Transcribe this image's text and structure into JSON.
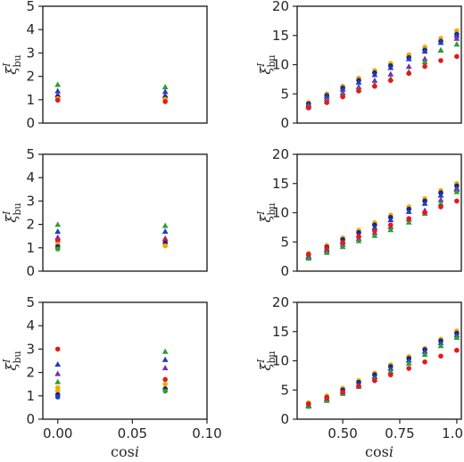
{
  "colors": {
    "red": "#e41a1c",
    "orange": "#f2a900",
    "green": "#2ca02c",
    "blue": "#1f3fbf",
    "purple": "#7a2fb0",
    "navy": "#1a237e"
  },
  "chart_data": [
    {
      "type": "scatter",
      "name": "top-left",
      "xlim": [
        -0.01,
        0.1
      ],
      "ylim": [
        0,
        5
      ],
      "xticks": [],
      "yticks": [
        0,
        1,
        2,
        3,
        4,
        5
      ],
      "ylabel_main": "ξ",
      "ylabel_sup": "I",
      "ylabel_sub": "bu",
      "xlabel": "",
      "points": [
        {
          "x": 0,
          "y": 1.65,
          "c": "green",
          "m": "tri"
        },
        {
          "x": 0,
          "y": 1.38,
          "c": "blue",
          "m": "tri"
        },
        {
          "x": 0,
          "y": 1.22,
          "c": "purple",
          "m": "tri"
        },
        {
          "x": 0,
          "y": 1.12,
          "c": "navy",
          "m": "circle"
        },
        {
          "x": 0,
          "y": 1.05,
          "c": "orange",
          "m": "circle"
        },
        {
          "x": 0,
          "y": 0.98,
          "c": "red",
          "m": "circle"
        },
        {
          "x": 0.072,
          "y": 1.55,
          "c": "green",
          "m": "tri"
        },
        {
          "x": 0.072,
          "y": 1.35,
          "c": "blue",
          "m": "tri"
        },
        {
          "x": 0.072,
          "y": 1.18,
          "c": "purple",
          "m": "tri"
        },
        {
          "x": 0.072,
          "y": 1.1,
          "c": "navy",
          "m": "circle"
        },
        {
          "x": 0.072,
          "y": 1.02,
          "c": "orange",
          "m": "circle"
        },
        {
          "x": 0.072,
          "y": 0.92,
          "c": "red",
          "m": "circle"
        }
      ]
    },
    {
      "type": "scatter",
      "name": "top-right",
      "xlim": [
        0.3,
        1.02
      ],
      "ylim": [
        0,
        20
      ],
      "xticks": [],
      "yticks": [
        0,
        5,
        10,
        15,
        20
      ],
      "ylabel_main": "ξ",
      "ylabel_sup": "I",
      "ylabel_sub": "bu",
      "xlabel": "",
      "x": [
        0.35,
        0.43,
        0.5,
        0.57,
        0.64,
        0.71,
        0.79,
        0.86,
        0.93,
        1.0
      ],
      "series": [
        {
          "c": "orange",
          "m": "circle",
          "values": [
            3.5,
            5.0,
            6.3,
            7.7,
            9.0,
            10.2,
            11.7,
            13.0,
            14.5,
            15.8
          ]
        },
        {
          "c": "navy",
          "m": "circle",
          "values": [
            3.3,
            4.7,
            6.0,
            7.3,
            8.6,
            9.8,
            11.2,
            12.5,
            14.0,
            15.2
          ]
        },
        {
          "c": "blue",
          "m": "tri",
          "values": [
            3.2,
            4.6,
            5.8,
            7.0,
            8.3,
            9.5,
            11.0,
            12.3,
            13.8,
            15.0
          ]
        },
        {
          "c": "purple",
          "m": "tri",
          "values": [
            3.0,
            4.2,
            5.2,
            6.2,
            7.3,
            8.4,
            9.7,
            11.0,
            12.5,
            14.5
          ]
        },
        {
          "c": "green",
          "m": "tri",
          "values": [
            2.8,
            3.8,
            4.8,
            5.8,
            6.6,
            7.6,
            8.8,
            10.5,
            12.5,
            13.5
          ]
        },
        {
          "c": "red",
          "m": "circle",
          "values": [
            2.6,
            3.5,
            4.5,
            5.5,
            6.3,
            7.3,
            8.5,
            9.7,
            10.7,
            11.4
          ]
        }
      ]
    },
    {
      "type": "scatter",
      "name": "middle-left",
      "xlim": [
        -0.01,
        0.1
      ],
      "ylim": [
        0,
        5
      ],
      "xticks": [],
      "yticks": [
        0,
        1,
        2,
        3,
        4,
        5
      ],
      "ylabel_main": "ξ",
      "ylabel_sup": "I",
      "ylabel_sub": "bu",
      "xlabel": "",
      "points": [
        {
          "x": 0,
          "y": 2.0,
          "c": "green",
          "m": "tri"
        },
        {
          "x": 0,
          "y": 1.7,
          "c": "blue",
          "m": "tri"
        },
        {
          "x": 0,
          "y": 1.45,
          "c": "purple",
          "m": "tri"
        },
        {
          "x": 0,
          "y": 1.3,
          "c": "red",
          "m": "circle"
        },
        {
          "x": 0,
          "y": 1.15,
          "c": "orange",
          "m": "circle"
        },
        {
          "x": 0,
          "y": 1.05,
          "c": "navy",
          "m": "circle"
        },
        {
          "x": 0,
          "y": 0.95,
          "c": "green",
          "m": "circle"
        },
        {
          "x": 0.072,
          "y": 1.95,
          "c": "green",
          "m": "tri"
        },
        {
          "x": 0.072,
          "y": 1.7,
          "c": "blue",
          "m": "tri"
        },
        {
          "x": 0.072,
          "y": 1.4,
          "c": "purple",
          "m": "tri"
        },
        {
          "x": 0.072,
          "y": 1.3,
          "c": "red",
          "m": "circle"
        },
        {
          "x": 0.072,
          "y": 1.2,
          "c": "navy",
          "m": "circle"
        },
        {
          "x": 0.072,
          "y": 1.08,
          "c": "orange",
          "m": "circle"
        }
      ]
    },
    {
      "type": "scatter",
      "name": "middle-right",
      "xlim": [
        0.3,
        1.02
      ],
      "ylim": [
        0,
        20
      ],
      "xticks": [],
      "yticks": [
        0,
        5,
        10,
        15,
        20
      ],
      "ylabel_main": "ξ",
      "ylabel_sup": "I",
      "ylabel_sub": "bu",
      "xlabel": "",
      "x": [
        0.35,
        0.43,
        0.5,
        0.57,
        0.64,
        0.71,
        0.79,
        0.86,
        0.93,
        1.0
      ],
      "series": [
        {
          "c": "orange",
          "m": "circle",
          "values": [
            3.0,
            4.4,
            5.7,
            7.0,
            8.3,
            9.6,
            11.0,
            12.4,
            13.8,
            15.0
          ]
        },
        {
          "c": "navy",
          "m": "circle",
          "values": [
            2.8,
            4.1,
            5.4,
            6.6,
            7.9,
            9.2,
            10.6,
            12.0,
            13.4,
            14.6
          ]
        },
        {
          "c": "blue",
          "m": "tri",
          "values": [
            2.6,
            3.8,
            5.0,
            6.2,
            7.5,
            8.8,
            10.2,
            11.6,
            13.0,
            14.2
          ]
        },
        {
          "c": "purple",
          "m": "tri",
          "values": [
            2.4,
            3.5,
            4.6,
            5.6,
            6.6,
            7.6,
            8.9,
            10.4,
            12.2,
            14.0
          ]
        },
        {
          "c": "green",
          "m": "tri",
          "values": [
            2.2,
            3.2,
            4.2,
            5.2,
            6.1,
            7.1,
            8.4,
            9.9,
            11.6,
            13.6
          ]
        },
        {
          "c": "red",
          "m": "circle",
          "values": [
            2.9,
            3.9,
            4.9,
            5.9,
            6.9,
            7.9,
            9.0,
            10.0,
            11.0,
            12.0
          ]
        }
      ]
    },
    {
      "type": "scatter",
      "name": "bottom-left",
      "xlim": [
        -0.01,
        0.1
      ],
      "ylim": [
        0,
        5
      ],
      "xticks": [
        0.0,
        0.05,
        0.1
      ],
      "xtick_labels": [
        "0.00",
        "0.05",
        "0.10"
      ],
      "yticks": [
        0,
        1,
        2,
        3,
        4,
        5
      ],
      "ylabel_main": "ξ",
      "ylabel_sup": "I",
      "ylabel_sub": "bu",
      "xlabel": "cos",
      "xlabel_var": "i",
      "points": [
        {
          "x": 0,
          "y": 3.0,
          "c": "red",
          "m": "circle"
        },
        {
          "x": 0,
          "y": 2.35,
          "c": "blue",
          "m": "tri"
        },
        {
          "x": 0,
          "y": 1.95,
          "c": "purple",
          "m": "tri"
        },
        {
          "x": 0,
          "y": 1.6,
          "c": "green",
          "m": "tri"
        },
        {
          "x": 0,
          "y": 1.35,
          "c": "orange",
          "m": "circle"
        },
        {
          "x": 0,
          "y": 1.2,
          "c": "orange",
          "m": "circle"
        },
        {
          "x": 0,
          "y": 1.05,
          "c": "navy",
          "m": "circle"
        },
        {
          "x": 0,
          "y": 0.95,
          "c": "blue",
          "m": "circle"
        },
        {
          "x": 0.072,
          "y": 2.9,
          "c": "green",
          "m": "tri"
        },
        {
          "x": 0.072,
          "y": 2.55,
          "c": "blue",
          "m": "tri"
        },
        {
          "x": 0.072,
          "y": 2.2,
          "c": "purple",
          "m": "tri"
        },
        {
          "x": 0.072,
          "y": 1.7,
          "c": "red",
          "m": "circle"
        },
        {
          "x": 0.072,
          "y": 1.5,
          "c": "orange",
          "m": "circle"
        },
        {
          "x": 0.072,
          "y": 1.3,
          "c": "navy",
          "m": "circle"
        },
        {
          "x": 0.072,
          "y": 1.2,
          "c": "green",
          "m": "circle"
        }
      ]
    },
    {
      "type": "scatter",
      "name": "bottom-right",
      "xlim": [
        0.3,
        1.02
      ],
      "ylim": [
        0,
        20
      ],
      "xticks": [
        0.5,
        0.75,
        1.0
      ],
      "xtick_labels": [
        "0.50",
        "0.75",
        "1.00"
      ],
      "yticks": [
        0,
        5,
        10,
        15,
        20
      ],
      "ylabel_main": "ξ",
      "ylabel_sup": "I",
      "ylabel_sub": "bu",
      "xlabel": "cos",
      "xlabel_var": "i",
      "x": [
        0.35,
        0.43,
        0.5,
        0.57,
        0.64,
        0.71,
        0.79,
        0.86,
        0.93,
        1.0
      ],
      "series": [
        {
          "c": "orange",
          "m": "circle",
          "values": [
            2.8,
            4.0,
            5.3,
            6.6,
            7.9,
            9.3,
            10.7,
            12.1,
            13.7,
            15.1
          ]
        },
        {
          "c": "navy",
          "m": "circle",
          "values": [
            2.6,
            3.7,
            5.0,
            6.3,
            7.6,
            9.0,
            10.4,
            11.9,
            13.4,
            14.7
          ]
        },
        {
          "c": "blue",
          "m": "tri",
          "values": [
            2.4,
            3.5,
            4.7,
            6.0,
            7.3,
            8.7,
            10.1,
            11.6,
            13.1,
            14.4
          ]
        },
        {
          "c": "green",
          "m": "tri",
          "values": [
            2.2,
            3.2,
            4.4,
            5.6,
            6.9,
            8.2,
            9.6,
            11.1,
            12.6,
            14.0
          ]
        },
        {
          "c": "red",
          "m": "circle",
          "values": [
            2.6,
            3.6,
            4.6,
            5.6,
            6.6,
            7.6,
            8.7,
            9.8,
            10.8,
            11.8
          ]
        }
      ]
    }
  ]
}
